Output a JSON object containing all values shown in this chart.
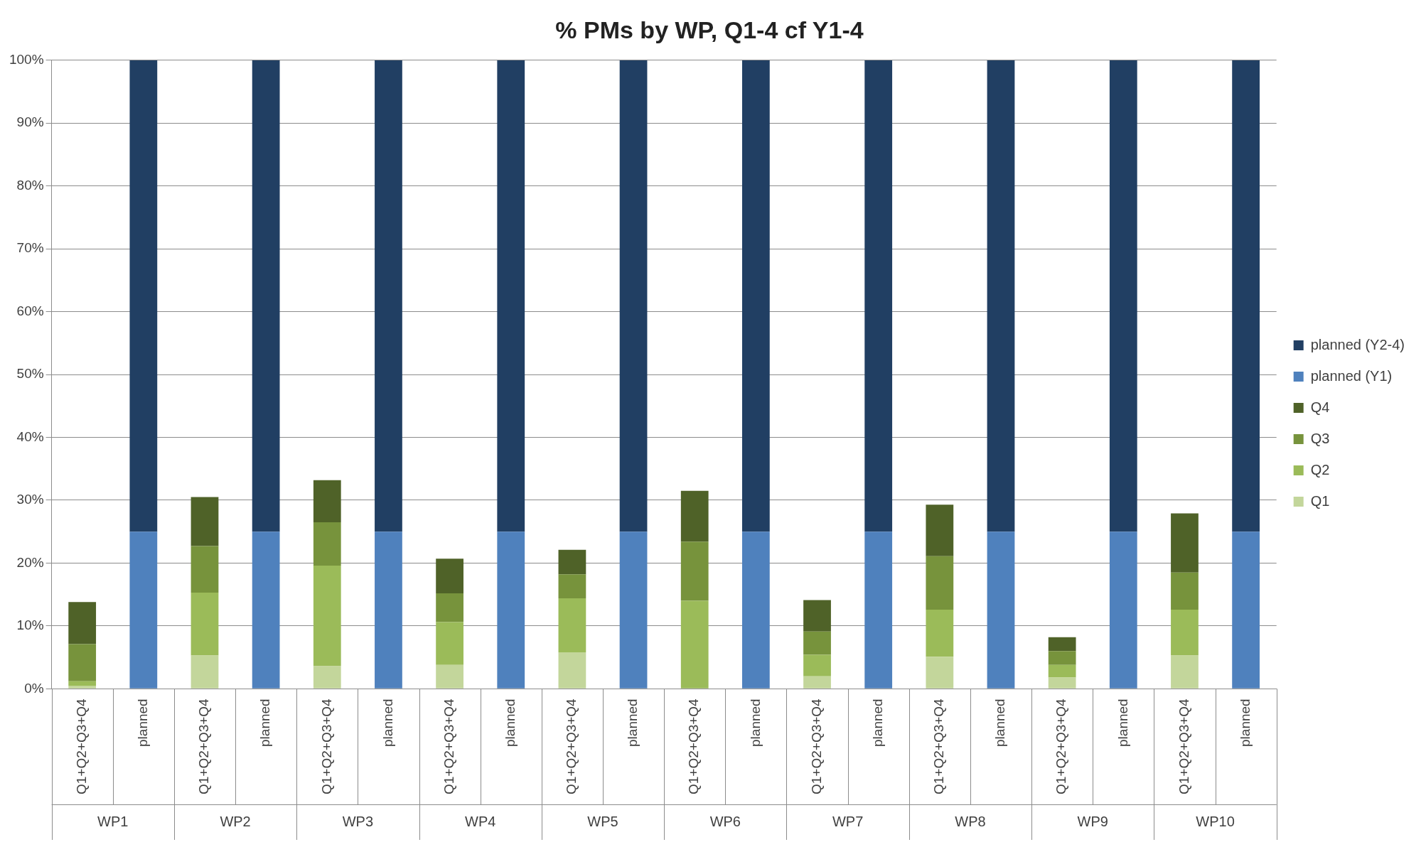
{
  "chart_data": {
    "type": "bar",
    "title": "% PMs by WP, Q1-4 cf Y1-4",
    "stacked": true,
    "categories": [
      "Q1+Q2+Q3+Q4",
      "planned",
      "Q1+Q2+Q3+Q4",
      "planned",
      "Q1+Q2+Q3+Q4",
      "planned",
      "Q1+Q2+Q3+Q4",
      "planned",
      "Q1+Q2+Q3+Q4",
      "planned",
      "Q1+Q2+Q3+Q4",
      "planned",
      "Q1+Q2+Q3+Q4",
      "planned",
      "Q1+Q2+Q3+Q4",
      "planned",
      "Q1+Q2+Q3+Q4",
      "planned",
      "Q1+Q2+Q3+Q4",
      "planned"
    ],
    "annotations": [
      "WP1",
      "WP2",
      "WP3",
      "WP4",
      "WP5",
      "WP6",
      "WP7",
      "WP8",
      "WP9",
      "WP10"
    ],
    "series": [
      {
        "name": "Q1",
        "color": "#c3d69b",
        "values": [
          0.5,
          null,
          5.3,
          null,
          3.6,
          null,
          3.8,
          null,
          5.8,
          null,
          0,
          null,
          2,
          null,
          5.1,
          null,
          1.8,
          null,
          5.3,
          null
        ]
      },
      {
        "name": "Q2",
        "color": "#9bbb59",
        "values": [
          0.7,
          null,
          10,
          null,
          16,
          null,
          6.8,
          null,
          8.6,
          null,
          14,
          null,
          3.4,
          null,
          7.5,
          null,
          2,
          null,
          7.3,
          null
        ]
      },
      {
        "name": "Q3",
        "color": "#77933c",
        "values": [
          5.9,
          null,
          7.4,
          null,
          6.9,
          null,
          4.6,
          null,
          3.8,
          null,
          9.4,
          null,
          3.7,
          null,
          8.5,
          null,
          2.2,
          null,
          5.9,
          null
        ]
      },
      {
        "name": "Q4",
        "color": "#4f6228",
        "values": [
          6.7,
          null,
          7.8,
          null,
          6.7,
          null,
          5.5,
          null,
          3.9,
          null,
          8.1,
          null,
          5,
          null,
          8.2,
          null,
          2.2,
          null,
          9.4,
          null
        ]
      },
      {
        "name": "planned (Y1)",
        "color": "#4f81bd",
        "values": [
          null,
          25,
          null,
          25,
          null,
          25,
          null,
          25,
          null,
          25,
          null,
          25,
          null,
          25,
          null,
          25,
          null,
          25,
          null,
          25
        ]
      },
      {
        "name": "planned (Y2-4)",
        "color": "#213f63",
        "values": [
          null,
          75,
          null,
          75,
          null,
          75,
          null,
          75,
          null,
          75,
          null,
          75,
          null,
          75,
          null,
          75,
          null,
          75,
          null,
          75
        ]
      }
    ],
    "ylim": [
      0,
      100
    ],
    "yticks": [
      {
        "value": 0,
        "label": "0%"
      },
      {
        "value": 10,
        "label": "10%"
      },
      {
        "value": 20,
        "label": "20%"
      },
      {
        "value": 30,
        "label": "30%"
      },
      {
        "value": 40,
        "label": "40%"
      },
      {
        "value": 50,
        "label": "50%"
      },
      {
        "value": 60,
        "label": "60%"
      },
      {
        "value": 70,
        "label": "70%"
      },
      {
        "value": 80,
        "label": "80%"
      },
      {
        "value": 90,
        "label": "90%"
      },
      {
        "value": 100,
        "label": "100%"
      }
    ],
    "grid": "y",
    "legend": "right"
  }
}
